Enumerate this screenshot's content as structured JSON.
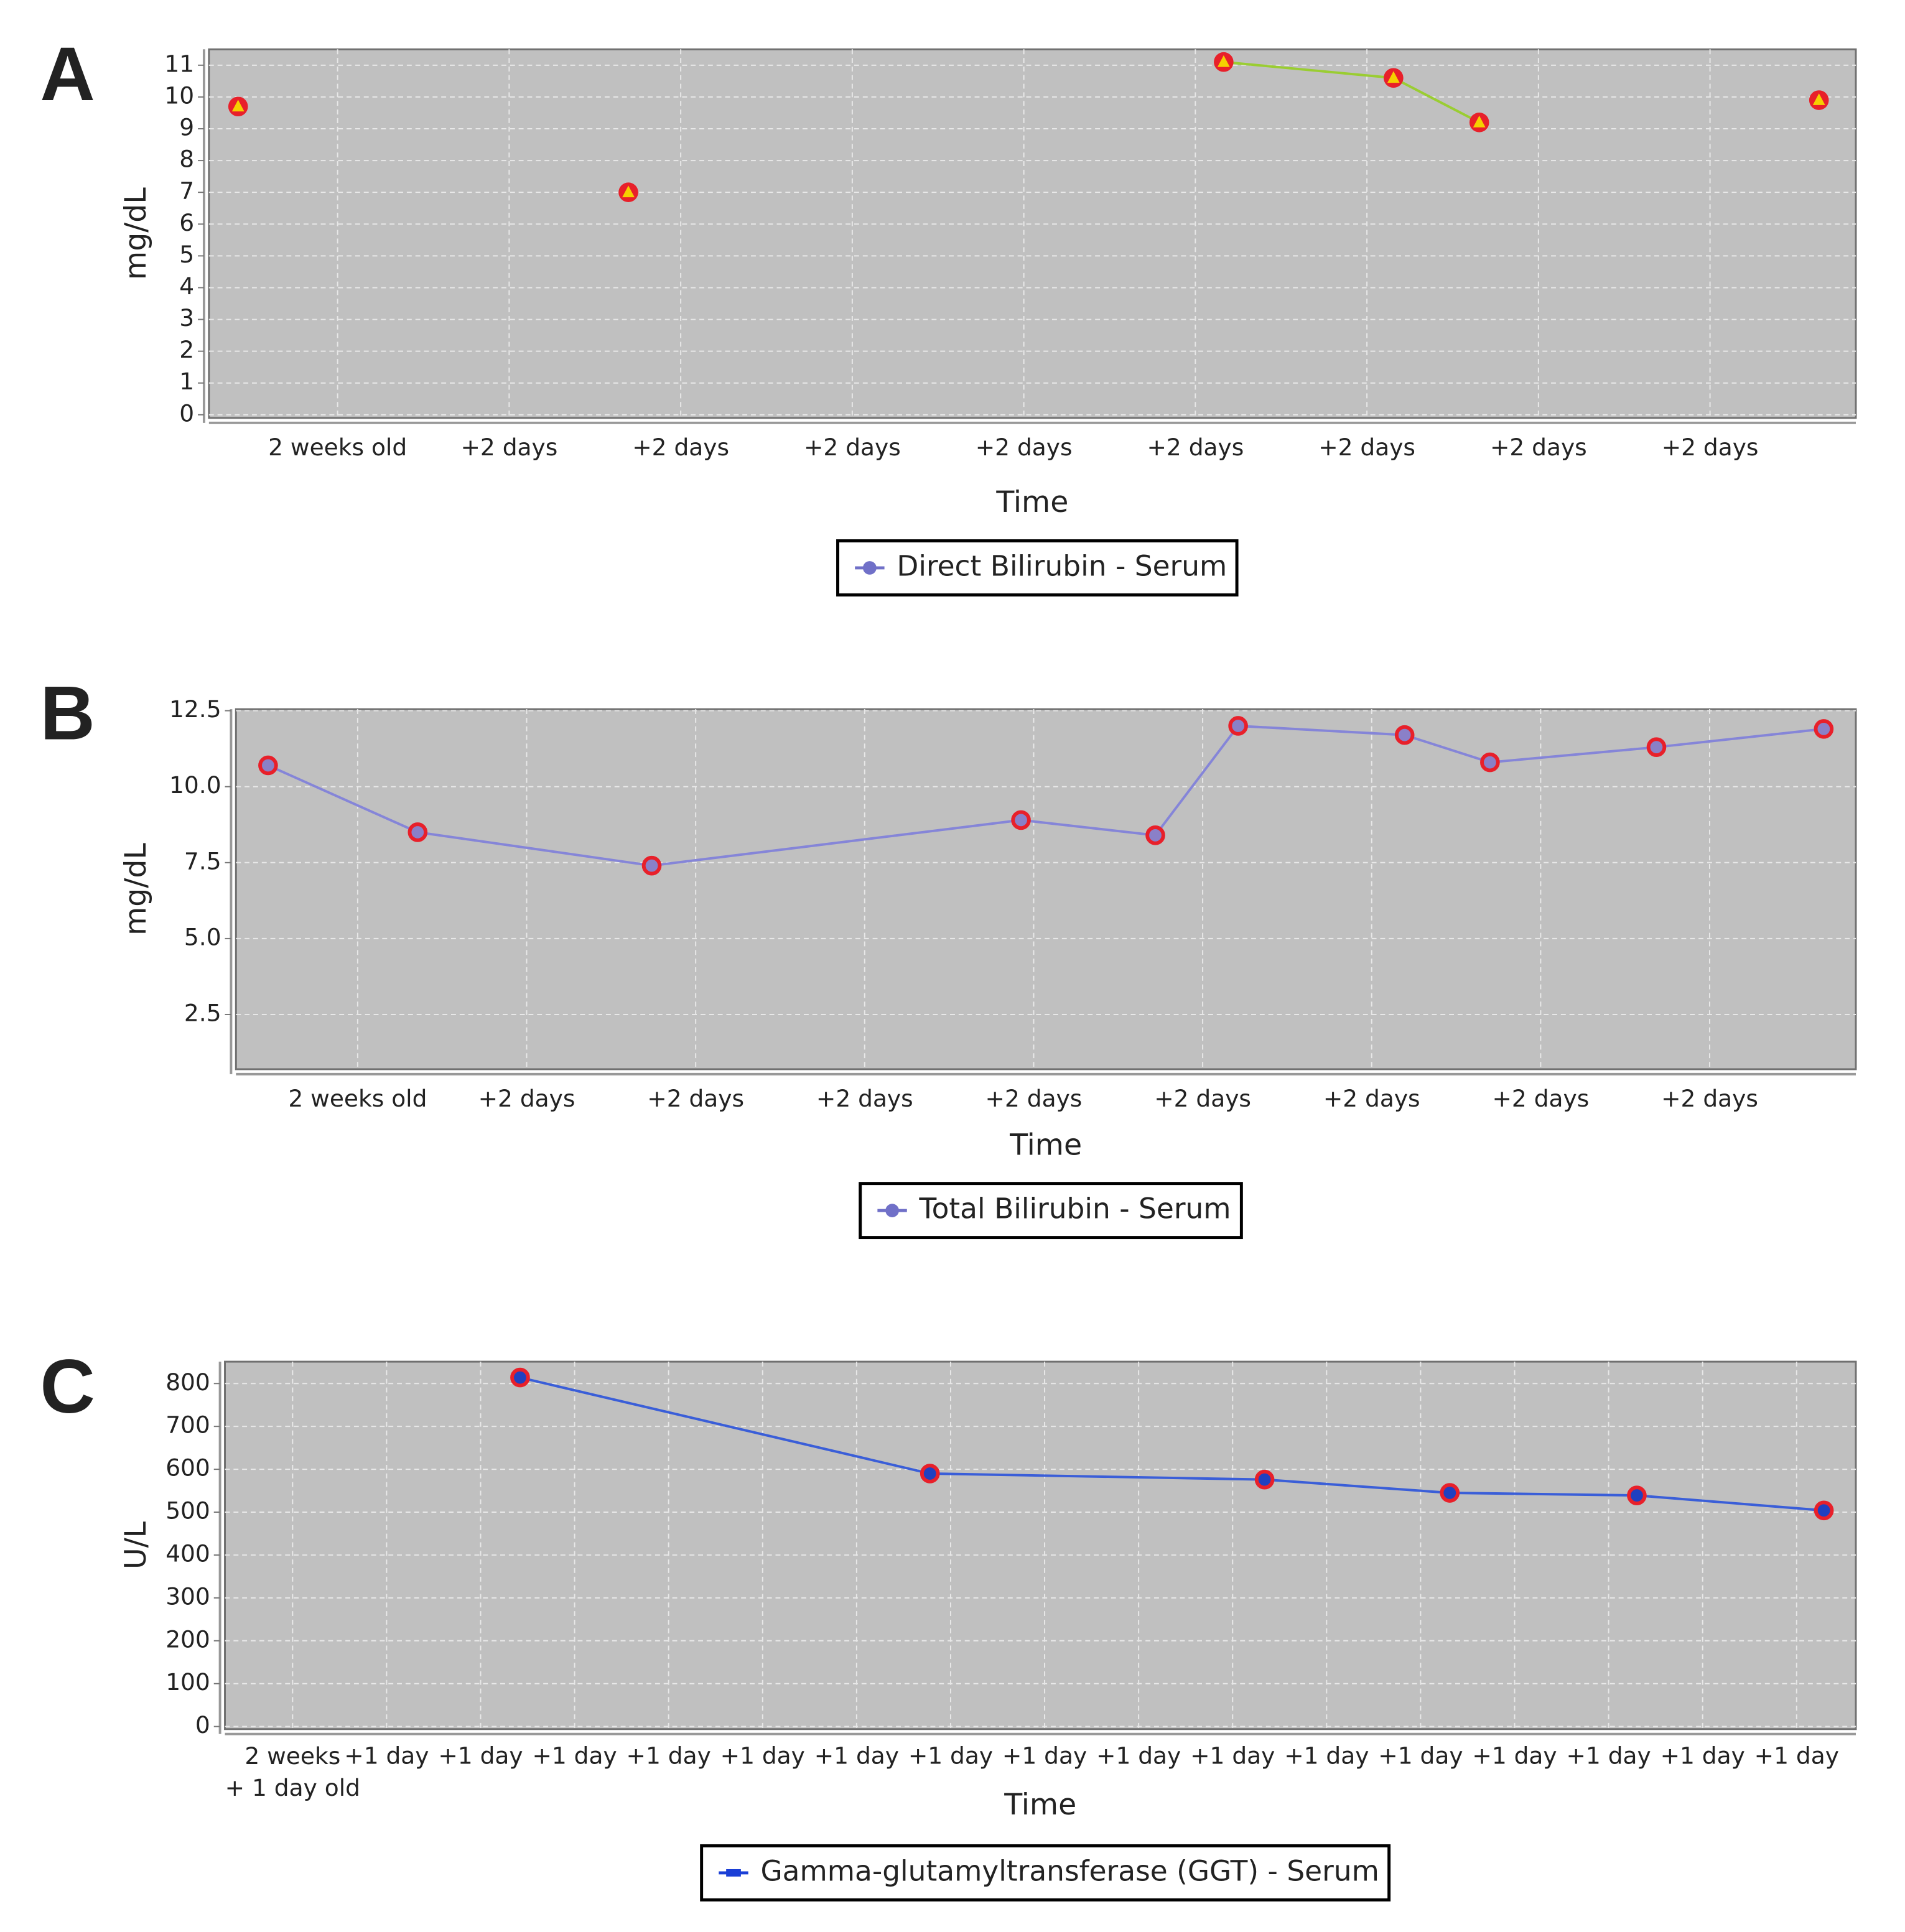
{
  "chart_data": [
    {
      "type": "line",
      "label": "A",
      "ylabel": "mg/dL",
      "xlabel": "Time",
      "x": [
        12.84,
        null,
        17.39,
        null,
        24.33,
        26.31,
        27.31,
        null,
        31.27
      ],
      "series": [
        {
          "name": "Direct Bilirubin - Serum",
          "color": "#7070c8",
          "values": [
            9.7,
            null,
            7,
            null,
            11.1,
            10.6,
            9.2,
            null,
            9.9
          ]
        }
      ],
      "line_color": "#9acd32",
      "marker": "triangle",
      "marker_edge_color": "#e8202a",
      "marker_face_color": "#f5d000",
      "xlim": [
        12.5,
        31.7
      ],
      "ylim": [
        -0.1,
        11.5
      ],
      "xticks": [
        {
          "value": 14,
          "label": "2 weeks old"
        },
        {
          "value": 16,
          "label": "+2 days"
        },
        {
          "value": 18,
          "label": "+2 days"
        },
        {
          "value": 20,
          "label": "+2 days"
        },
        {
          "value": 22,
          "label": "+2 days"
        },
        {
          "value": 24,
          "label": "+2 days"
        },
        {
          "value": 26,
          "label": "+2 days"
        },
        {
          "value": 28,
          "label": "+2 days"
        },
        {
          "value": 30,
          "label": "+2 days"
        }
      ],
      "yticks": [
        0,
        1,
        2,
        3,
        4,
        5,
        6,
        7,
        8,
        9,
        10,
        11
      ],
      "grid": true
    },
    {
      "type": "line",
      "label": "B",
      "ylabel": "mg/dL",
      "xlabel": "Time",
      "x": [
        12.94,
        14.71,
        17.48,
        21.85,
        23.44,
        24.42,
        26.39,
        27.4,
        29.37,
        31.35
      ],
      "series": [
        {
          "name": "Total Bilirubin - Serum",
          "color": "#7070c8",
          "values": [
            10.7,
            8.5,
            7.4,
            8.9,
            8.4,
            12.0,
            11.7,
            10.8,
            11.3,
            11.9
          ]
        }
      ],
      "line_color": "#8585d8",
      "marker": "circle",
      "marker_edge_color": "#e8202a",
      "marker_face_color": "#8a80c8",
      "xlim": [
        12.56,
        31.73
      ],
      "ylim": [
        0.7,
        12.55
      ],
      "xticks": [
        {
          "value": 14,
          "label": "2 weeks old"
        },
        {
          "value": 16,
          "label": "+2 days"
        },
        {
          "value": 18,
          "label": "+2 days"
        },
        {
          "value": 20,
          "label": "+2 days"
        },
        {
          "value": 22,
          "label": "+2 days"
        },
        {
          "value": 24,
          "label": "+2 days"
        },
        {
          "value": 26,
          "label": "+2 days"
        },
        {
          "value": 28,
          "label": "+2 days"
        },
        {
          "value": 30,
          "label": "+2 days"
        }
      ],
      "yticks": [
        2.5,
        {
          "value": 5,
          "label": "5.0"
        },
        7.5,
        {
          "value": 10,
          "label": "10.0"
        },
        12.5
      ],
      "grid": true
    },
    {
      "type": "line",
      "label": "C",
      "ylabel": "U/L",
      "xlabel": "Time",
      "x": [
        17.42,
        21.78,
        25.34,
        27.31,
        29.3,
        31.29
      ],
      "series": [
        {
          "name": "Gamma-glutamyltransferase (GGT) - Serum",
          "color": "#1a3fd6",
          "values": [
            814,
            590,
            576,
            545,
            539,
            504
          ]
        }
      ],
      "line_color": "#3a5ed8",
      "marker": "circle",
      "marker_edge_color": "#e8202a",
      "marker_face_color": "#2040c0",
      "xlim": [
        14.28,
        31.63
      ],
      "ylim": [
        -6,
        851
      ],
      "xticks": [
        {
          "value": 15,
          "label": "2 weeks\n+ 1 day old"
        },
        {
          "value": 16,
          "label": "+1 day"
        },
        {
          "value": 17,
          "label": "+1 day"
        },
        {
          "value": 18,
          "label": "+1 day"
        },
        {
          "value": 19,
          "label": "+1 day"
        },
        {
          "value": 20,
          "label": "+1 day"
        },
        {
          "value": 21,
          "label": "+1 day"
        },
        {
          "value": 22,
          "label": "+1 day"
        },
        {
          "value": 23,
          "label": "+1 day"
        },
        {
          "value": 24,
          "label": "+1 day"
        },
        {
          "value": 25,
          "label": "+1 day"
        },
        {
          "value": 26,
          "label": "+1 day"
        },
        {
          "value": 27,
          "label": "+1 day"
        },
        {
          "value": 28,
          "label": "+1 day"
        },
        {
          "value": 29,
          "label": "+1 day"
        },
        {
          "value": 30,
          "label": "+1 day"
        },
        {
          "value": 31,
          "label": "+1 day"
        }
      ],
      "yticks": [
        0,
        100,
        200,
        300,
        400,
        500,
        600,
        700,
        800
      ],
      "grid": true
    }
  ]
}
